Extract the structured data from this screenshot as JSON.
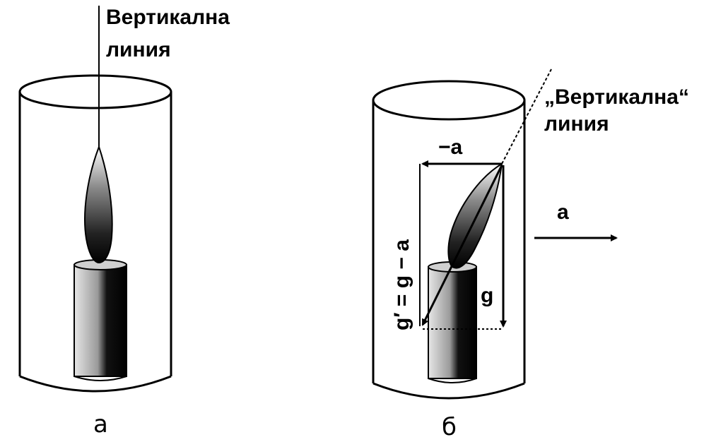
{
  "panel_a": {
    "caption": "а",
    "label_line1": "Вертикална",
    "label_line2": "линия"
  },
  "panel_b": {
    "caption": "б",
    "label_line1": "„Вертикална“",
    "label_line2": "линия",
    "vector_minus_a": "−a",
    "vector_a": "a",
    "vector_g": "g",
    "vector_g_prime": "g′ = g − a"
  }
}
